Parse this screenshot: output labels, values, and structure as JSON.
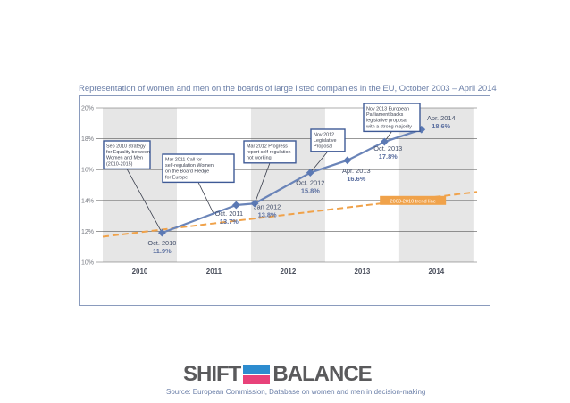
{
  "figure_title": "Representation of women and men on the boards of large listed companies in the EU, October 2003 – April 2014",
  "source": "Source: European Commission, Database on women and men in decision-making",
  "logo": {
    "left_word": "SHIFT",
    "right_word": "BALANCE",
    "colors": {
      "top_bar": "#2d8ccf",
      "bottom_bar": "#e8427a",
      "text": "#5a5a5c"
    }
  },
  "colors": {
    "series_line": "#6a84b8",
    "marker": "#5b79b4",
    "trend_line": "#f0a24a",
    "shaded_band": "#e6e6e6",
    "label_text": "#44506b",
    "value_text": "#5b6fa0",
    "annotation_border": "#3f5a96"
  },
  "chart_data": {
    "type": "line",
    "title": "Representation of women and men on the boards of large listed companies in the EU, October 2003 – April 2014",
    "xlim": [
      2009.5,
      2014.55
    ],
    "ylim": [
      10,
      20
    ],
    "y_ticks": [
      {
        "value": 10,
        "label": "10%"
      },
      {
        "value": 12,
        "label": "12%"
      },
      {
        "value": 14,
        "label": "14%"
      },
      {
        "value": 16,
        "label": "16%"
      },
      {
        "value": 18,
        "label": "18%"
      },
      {
        "value": 20,
        "label": "20%"
      }
    ],
    "x_ticks": [
      {
        "value": 2010,
        "label": "2010"
      },
      {
        "value": 2011,
        "label": "2011"
      },
      {
        "value": 2012,
        "label": "2012"
      },
      {
        "value": 2013,
        "label": "2013"
      },
      {
        "value": 2014,
        "label": "2014"
      }
    ],
    "shaded_years": [
      2010,
      2012,
      2014
    ],
    "grid": "horizontal",
    "series": [
      {
        "points": [
          {
            "x": 2010.3,
            "y": 11.9,
            "date": "Oct. 2010",
            "value": "11.9%"
          },
          {
            "x": 2011.3,
            "y": 13.7,
            "date": "Oct. 2011",
            "value": "13.7%"
          },
          {
            "x": 2011.55,
            "y": 13.8,
            "date": "Jan 2012",
            "value": "13.8%"
          },
          {
            "x": 2012.3,
            "y": 15.8,
            "date": "Oct. 2012",
            "value": "15.8%"
          },
          {
            "x": 2012.8,
            "y": 16.6,
            "date": "Apr. 2013",
            "value": "16.6%"
          },
          {
            "x": 2013.3,
            "y": 17.8,
            "date": "Oct. 2013",
            "value": "17.8%"
          },
          {
            "x": 2013.8,
            "y": 18.6,
            "date": "Apr. 2014",
            "value": "18.6%"
          }
        ]
      }
    ],
    "trend": {
      "name": "2003-2010 trend line",
      "points": [
        {
          "x": 2009.5,
          "y": 11.65
        },
        {
          "x": 2014.55,
          "y": 14.55
        }
      ]
    },
    "annotations": [
      {
        "text": "Sep 2010 strategy for Equality between Women and Men (2010-2015)",
        "anchor": {
          "x": 2010.3,
          "y": 11.9
        }
      },
      {
        "text": "Mar 2011 Call for self-regulation Women on the Board Pledge for Europe",
        "anchor": {
          "x": 2011.0,
          "y": 13.1
        }
      },
      {
        "text": "Mar 2012 Progress report self-regulation not working",
        "anchor": {
          "x": 2011.55,
          "y": 13.8
        }
      },
      {
        "text": "Nov 2012 Legislative Proposal",
        "anchor": {
          "x": 2012.3,
          "y": 15.8
        }
      },
      {
        "text": "Nov 2013 European Parliament backs legislative proposal with a strong majority",
        "anchor": {
          "x": 2013.3,
          "y": 17.8
        }
      }
    ]
  }
}
